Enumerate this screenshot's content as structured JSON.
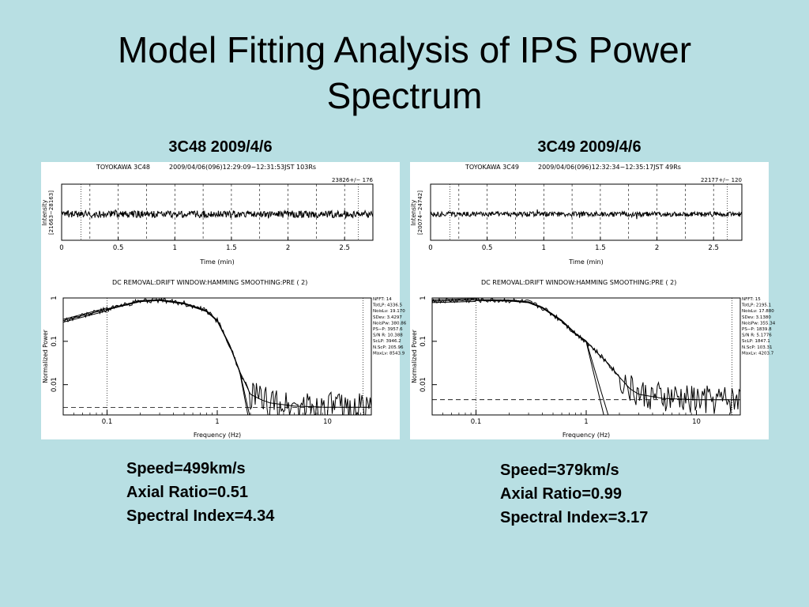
{
  "slide": {
    "title_line1": "Model Fitting Analysis of IPS Power",
    "title_line2": "Spectrum"
  },
  "colors": {
    "background": "#b8dfe3",
    "plot_bg": "#ffffff",
    "ink": "#000000"
  },
  "panels": [
    {
      "label": "3C48 2009/4/6",
      "header": {
        "site": "TOYOKAWA 3C48",
        "date": "2009/04/06(096)12:29:09−12:31:53JST 103Rs",
        "mean": "23826+/− 176"
      },
      "intensity_range": "[21663−28163]",
      "params": [
        "Speed=499km/s",
        "Axial Ratio=0.51",
        "Spectral Index=4.34"
      ],
      "fit_params": [
        "NFFT: 14",
        "TotLP: 4336.5",
        "NoisLv: 19.170",
        "SDev: 3.4297",
        "NoisPw: 380.86",
        "PS−P: 3957.6",
        "S/N R: 10.388",
        "ScLP: 3946.2",
        "N.ScP: 205.96",
        "MaxLv: 8543.9"
      ],
      "spectrum": {
        "cut_left": 0.1,
        "cut_right": 21,
        "noise_level": 0.003,
        "falloff_hz": 1.6
      }
    },
    {
      "label": "3C49 2009/4/6",
      "header": {
        "site": "TOYOKAWA 3C49",
        "date": "2009/04/06(096)12:32:34−12:35:17JST 49Rs",
        "mean": "22177+/− 120"
      },
      "intensity_range": "[20074−24742]",
      "params": [
        "Speed=379km/s",
        "Axial Ratio=0.99",
        "Spectral Index=3.17"
      ],
      "fit_params": [
        "NFFT: 15",
        "TotLP: 2195.1",
        "NoisLv: 17.880",
        "SDev: 3.1380",
        "NoisPw: 355.34",
        "PS−P: 1839.8",
        "S/N R: 5.1776",
        "ScLP: 1847.1",
        "N.ScP: 103.31",
        "MaxLv: 4203.7"
      ],
      "spectrum": {
        "cut_left": 0.1,
        "cut_right": 21,
        "noise_level": 0.0045,
        "falloff_hz": 1.0
      }
    }
  ],
  "axes": {
    "time_xlabel": "Time (min)",
    "time_ticks": [
      "0",
      "0.5",
      "1",
      "1.5",
      "2",
      "2.5"
    ],
    "intensity_ylabel": "Intensity",
    "spectrum_header": "DC REMOVAL:DRIFT   WINDOW:HAMMING SMOOTHING:PRE ( 2)",
    "freq_xlabel": "Frequency (Hz)",
    "freq_ticks": [
      "0.1",
      "1",
      "10"
    ],
    "power_ylabel": "Normalized Power",
    "power_ticks": [
      "1",
      "0.1",
      "0.01"
    ]
  },
  "chart_data": [
    {
      "type": "line",
      "title": "3C48 2009/4/6",
      "xlabel": "Frequency (Hz)",
      "ylabel": "Normalized Power",
      "xscale": "log",
      "yscale": "log",
      "xlim": [
        0.04,
        25
      ],
      "ylim": [
        0.002,
        1
      ],
      "series": [
        {
          "x": [
            0.04,
            0.1,
            0.2,
            0.3,
            0.5,
            0.8,
            1.0,
            1.3,
            1.6,
            2.0,
            2.5,
            3,
            5,
            10,
            20,
            25
          ],
          "y": [
            0.3,
            0.55,
            0.85,
            0.9,
            0.75,
            0.5,
            0.3,
            0.08,
            0.02,
            0.006,
            0.0045,
            0.0038,
            0.0032,
            0.003,
            0.003,
            0.003
          ]
        }
      ]
    },
    {
      "type": "line",
      "title": "3C49 2009/4/6",
      "xlabel": "Frequency (Hz)",
      "ylabel": "Normalized Power",
      "xscale": "log",
      "yscale": "log",
      "xlim": [
        0.04,
        25
      ],
      "ylim": [
        0.002,
        1
      ],
      "series": [
        {
          "x": [
            0.04,
            0.1,
            0.2,
            0.3,
            0.4,
            0.6,
            0.8,
            1.0,
            1.3,
            1.6,
            2.0,
            2.5,
            3,
            5,
            10,
            20,
            25
          ],
          "y": [
            0.85,
            0.9,
            0.88,
            0.8,
            0.6,
            0.3,
            0.15,
            0.1,
            0.05,
            0.03,
            0.015,
            0.008,
            0.006,
            0.0048,
            0.0045,
            0.0045,
            0.0045
          ]
        }
      ]
    }
  ]
}
